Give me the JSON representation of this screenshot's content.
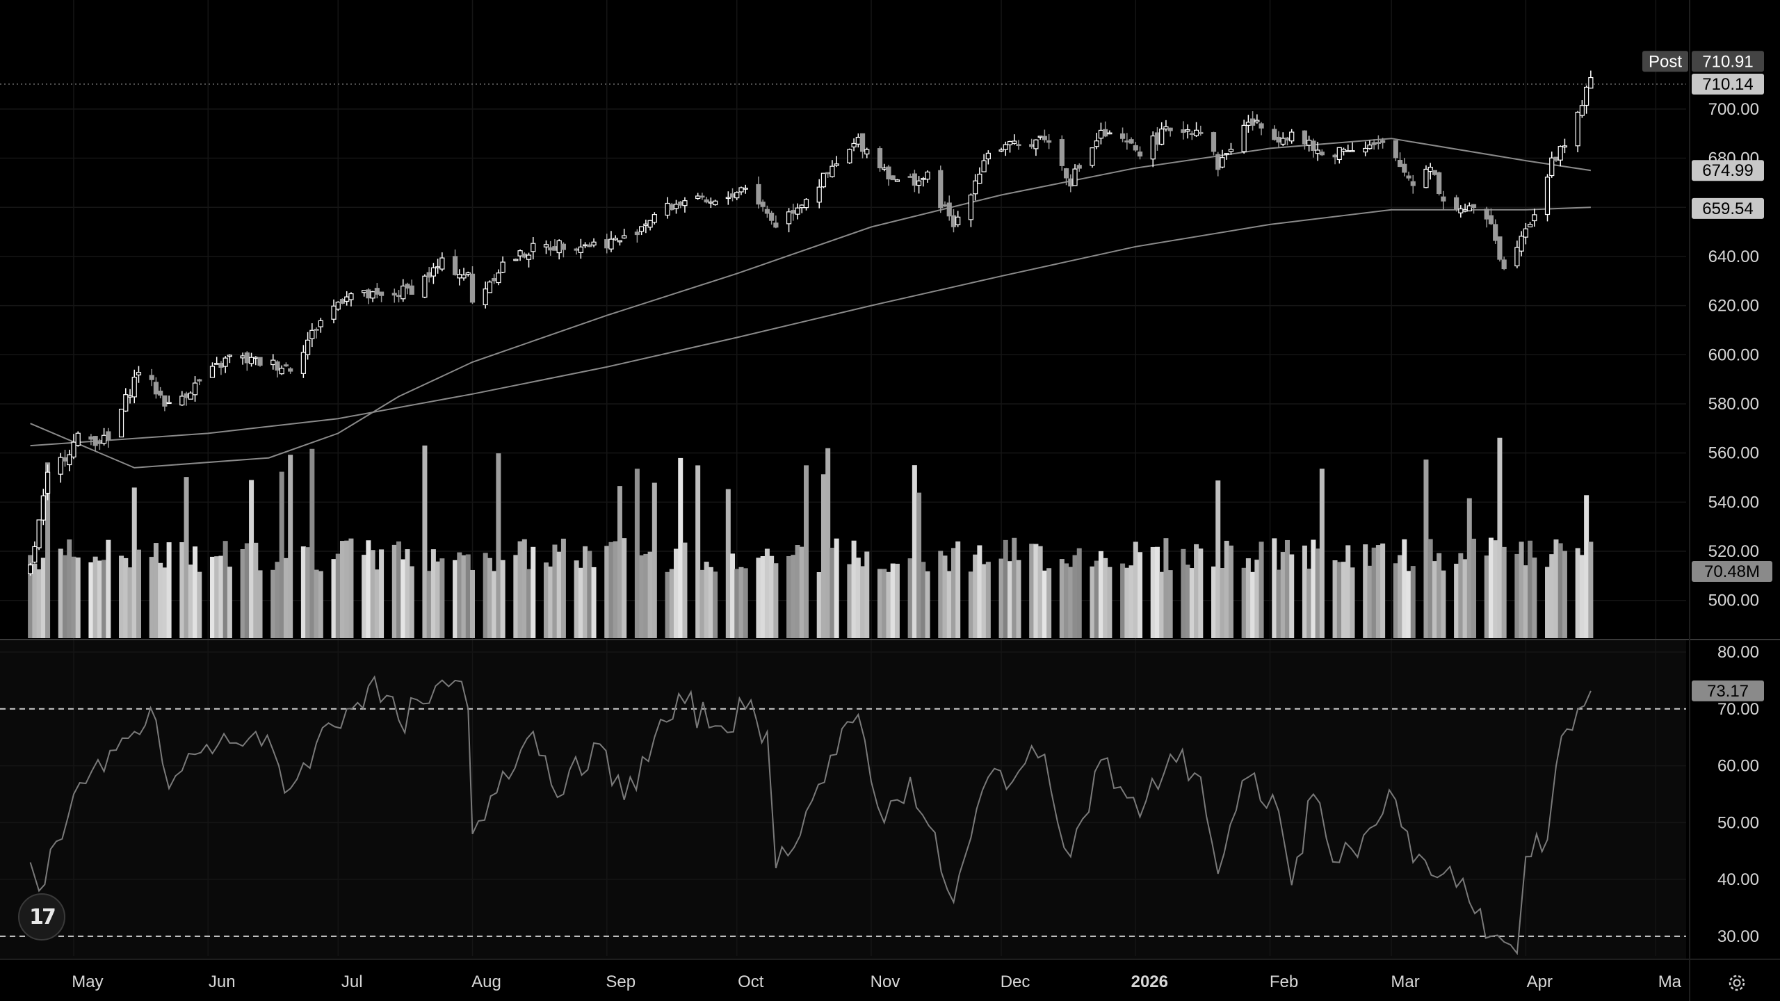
{
  "chart_data": [
    {
      "type": "candlestick",
      "title": "",
      "colors": {
        "up": "#ffffff",
        "down": "#9a9a9a",
        "ma50": "#8a8a8a",
        "ma200": "#8a8a8a",
        "volume": "#9a9a9a"
      },
      "x_tick_labels": [
        {
          "label": "May",
          "date": "2025-05-01"
        },
        {
          "label": "Jun",
          "date": "2025-06-01"
        },
        {
          "label": "Jul",
          "date": "2025-07-01"
        },
        {
          "label": "Aug",
          "date": "2025-08-01"
        },
        {
          "label": "Sep",
          "date": "2025-09-01"
        },
        {
          "label": "Oct",
          "date": "2025-10-01"
        },
        {
          "label": "Nov",
          "date": "2025-11-01"
        },
        {
          "label": "Dec",
          "date": "2025-12-01"
        },
        {
          "label": "2026",
          "date": "2026-01-01",
          "bold": true
        },
        {
          "label": "Feb",
          "date": "2026-02-01"
        },
        {
          "label": "Mar",
          "date": "2026-03-01"
        },
        {
          "label": "Apr",
          "date": "2026-04-01"
        },
        {
          "label": "Ma",
          "date": "2026-05-01"
        }
      ],
      "y_ticks": [
        "500.00",
        "520.00",
        "540.00",
        "560.00",
        "580.00",
        "600.00",
        "620.00",
        "640.00",
        "660.00",
        "680.00",
        "700.00"
      ],
      "ylim": [
        492,
        724
      ],
      "price_labels": [
        {
          "value": "710.91",
          "tag": "Post"
        },
        {
          "value": "710.14"
        },
        {
          "value": "674.99"
        },
        {
          "value": "659.54"
        }
      ],
      "volume_label": "70.48M",
      "close_path": [
        {
          "date": "2025-04-21",
          "close": 513
        },
        {
          "date": "2025-04-25",
          "close": 550
        },
        {
          "date": "2025-05-02",
          "close": 566
        },
        {
          "date": "2025-05-09",
          "close": 565
        },
        {
          "date": "2025-05-16",
          "close": 594
        },
        {
          "date": "2025-05-23",
          "close": 579
        },
        {
          "date": "2025-05-30",
          "close": 589
        },
        {
          "date": "2025-06-06",
          "close": 599
        },
        {
          "date": "2025-06-13",
          "close": 597
        },
        {
          "date": "2025-06-20",
          "close": 595
        },
        {
          "date": "2025-06-27",
          "close": 614
        },
        {
          "date": "2025-07-03",
          "close": 625
        },
        {
          "date": "2025-07-11",
          "close": 623
        },
        {
          "date": "2025-07-18",
          "close": 627
        },
        {
          "date": "2025-07-25",
          "close": 637
        },
        {
          "date": "2025-07-31",
          "close": 632
        },
        {
          "date": "2025-08-01",
          "close": 621
        },
        {
          "date": "2025-08-08",
          "close": 637
        },
        {
          "date": "2025-08-15",
          "close": 643
        },
        {
          "date": "2025-08-22",
          "close": 645
        },
        {
          "date": "2025-08-29",
          "close": 645
        },
        {
          "date": "2025-09-05",
          "close": 647
        },
        {
          "date": "2025-09-12",
          "close": 657
        },
        {
          "date": "2025-09-19",
          "close": 663
        },
        {
          "date": "2025-09-26",
          "close": 661
        },
        {
          "date": "2025-10-03",
          "close": 669
        },
        {
          "date": "2025-10-10",
          "close": 653
        },
        {
          "date": "2025-10-17",
          "close": 664
        },
        {
          "date": "2025-10-24",
          "close": 677
        },
        {
          "date": "2025-10-29",
          "close": 687
        },
        {
          "date": "2025-11-04",
          "close": 676
        },
        {
          "date": "2025-11-07",
          "close": 670
        },
        {
          "date": "2025-11-14",
          "close": 672
        },
        {
          "date": "2025-11-20",
          "close": 652
        },
        {
          "date": "2025-11-28",
          "close": 683
        },
        {
          "date": "2025-12-05",
          "close": 685
        },
        {
          "date": "2025-12-11",
          "close": 689
        },
        {
          "date": "2025-12-17",
          "close": 671
        },
        {
          "date": "2025-12-24",
          "close": 690
        },
        {
          "date": "2026-01-02",
          "close": 683
        },
        {
          "date": "2026-01-09",
          "close": 692
        },
        {
          "date": "2026-01-16",
          "close": 692
        },
        {
          "date": "2026-01-20",
          "close": 677
        },
        {
          "date": "2026-01-27",
          "close": 695
        },
        {
          "date": "2026-02-03",
          "close": 689
        },
        {
          "date": "2026-02-06",
          "close": 690
        },
        {
          "date": "2026-02-13",
          "close": 681
        },
        {
          "date": "2026-02-20",
          "close": 685
        },
        {
          "date": "2026-02-27",
          "close": 685
        },
        {
          "date": "2026-03-06",
          "close": 670
        },
        {
          "date": "2026-03-10",
          "close": 678
        },
        {
          "date": "2026-03-13",
          "close": 662
        },
        {
          "date": "2026-03-20",
          "close": 658
        },
        {
          "date": "2026-03-24",
          "close": 655
        },
        {
          "date": "2026-03-27",
          "close": 634
        },
        {
          "date": "2026-03-31",
          "close": 650
        },
        {
          "date": "2026-04-03",
          "close": 658
        },
        {
          "date": "2026-04-07",
          "close": 678
        },
        {
          "date": "2026-04-10",
          "close": 686
        },
        {
          "date": "2026-04-14",
          "close": 703
        },
        {
          "date": "2026-04-16",
          "close": 711
        }
      ],
      "ma50": [
        {
          "date": "2025-04-21",
          "value": 572
        },
        {
          "date": "2025-05-15",
          "value": 554
        },
        {
          "date": "2025-06-15",
          "value": 558
        },
        {
          "date": "2025-07-01",
          "value": 568
        },
        {
          "date": "2025-07-15",
          "value": 583
        },
        {
          "date": "2025-08-01",
          "value": 597
        },
        {
          "date": "2025-09-01",
          "value": 616
        },
        {
          "date": "2025-10-01",
          "value": 633
        },
        {
          "date": "2025-11-01",
          "value": 652
        },
        {
          "date": "2025-12-01",
          "value": 665
        },
        {
          "date": "2026-01-01",
          "value": 676
        },
        {
          "date": "2026-02-01",
          "value": 684
        },
        {
          "date": "2026-03-01",
          "value": 688
        },
        {
          "date": "2026-04-01",
          "value": 679
        },
        {
          "date": "2026-04-16",
          "value": 675
        }
      ],
      "ma200": [
        {
          "date": "2025-04-21",
          "value": 563
        },
        {
          "date": "2025-06-01",
          "value": 568
        },
        {
          "date": "2025-07-01",
          "value": 574
        },
        {
          "date": "2025-08-01",
          "value": 584
        },
        {
          "date": "2025-09-01",
          "value": 595
        },
        {
          "date": "2025-10-01",
          "value": 607
        },
        {
          "date": "2025-11-01",
          "value": 620
        },
        {
          "date": "2025-12-01",
          "value": 632
        },
        {
          "date": "2026-01-01",
          "value": 644
        },
        {
          "date": "2026-02-01",
          "value": 653
        },
        {
          "date": "2026-03-01",
          "value": 659
        },
        {
          "date": "2026-04-01",
          "value": 659
        },
        {
          "date": "2026-04-16",
          "value": 660
        }
      ]
    },
    {
      "type": "line",
      "title": "",
      "y_ticks": [
        "30.00",
        "40.00",
        "50.00",
        "60.00",
        "70.00",
        "80.00"
      ],
      "ylim": [
        24,
        80
      ],
      "reference_levels": [
        70,
        30
      ],
      "current_label": "73.17",
      "line_color": "#7a7a7a",
      "series": [
        {
          "date": "2025-04-21",
          "value": 43
        },
        {
          "date": "2025-04-23",
          "value": 38
        },
        {
          "date": "2025-05-01",
          "value": 55
        },
        {
          "date": "2025-05-08",
          "value": 59
        },
        {
          "date": "2025-05-15",
          "value": 66
        },
        {
          "date": "2025-05-20",
          "value": 68
        },
        {
          "date": "2025-05-23",
          "value": 56
        },
        {
          "date": "2025-05-29",
          "value": 62
        },
        {
          "date": "2025-06-06",
          "value": 64
        },
        {
          "date": "2025-06-12",
          "value": 66
        },
        {
          "date": "2025-06-20",
          "value": 56
        },
        {
          "date": "2025-06-26",
          "value": 64
        },
        {
          "date": "2025-07-03",
          "value": 70
        },
        {
          "date": "2025-07-08",
          "value": 74
        },
        {
          "date": "2025-07-15",
          "value": 68
        },
        {
          "date": "2025-07-22",
          "value": 71
        },
        {
          "date": "2025-07-28",
          "value": 75
        },
        {
          "date": "2025-07-31",
          "value": 70
        },
        {
          "date": "2025-08-01",
          "value": 48
        },
        {
          "date": "2025-08-08",
          "value": 59
        },
        {
          "date": "2025-08-15",
          "value": 66
        },
        {
          "date": "2025-08-22",
          "value": 55
        },
        {
          "date": "2025-08-29",
          "value": 64
        },
        {
          "date": "2025-09-05",
          "value": 54
        },
        {
          "date": "2025-09-12",
          "value": 65
        },
        {
          "date": "2025-09-19",
          "value": 71
        },
        {
          "date": "2025-09-26",
          "value": 67
        },
        {
          "date": "2025-10-03",
          "value": 70
        },
        {
          "date": "2025-10-08",
          "value": 66
        },
        {
          "date": "2025-10-10",
          "value": 42
        },
        {
          "date": "2025-10-17",
          "value": 52
        },
        {
          "date": "2025-10-24",
          "value": 62
        },
        {
          "date": "2025-10-29",
          "value": 69
        },
        {
          "date": "2025-11-04",
          "value": 50
        },
        {
          "date": "2025-11-10",
          "value": 58
        },
        {
          "date": "2025-11-20",
          "value": 36
        },
        {
          "date": "2025-11-28",
          "value": 58
        },
        {
          "date": "2025-12-05",
          "value": 59
        },
        {
          "date": "2025-12-11",
          "value": 62
        },
        {
          "date": "2025-12-17",
          "value": 44
        },
        {
          "date": "2025-12-24",
          "value": 61
        },
        {
          "date": "2026-01-02",
          "value": 51
        },
        {
          "date": "2026-01-09",
          "value": 62
        },
        {
          "date": "2026-01-16",
          "value": 58
        },
        {
          "date": "2026-01-20",
          "value": 41
        },
        {
          "date": "2026-01-27",
          "value": 58
        },
        {
          "date": "2026-02-03",
          "value": 52
        },
        {
          "date": "2026-02-06",
          "value": 39
        },
        {
          "date": "2026-02-11",
          "value": 55
        },
        {
          "date": "2026-02-17",
          "value": 43
        },
        {
          "date": "2026-02-24",
          "value": 49
        },
        {
          "date": "2026-03-02",
          "value": 54
        },
        {
          "date": "2026-03-06",
          "value": 43
        },
        {
          "date": "2026-03-13",
          "value": 41
        },
        {
          "date": "2026-03-19",
          "value": 36
        },
        {
          "date": "2026-03-24",
          "value": 30
        },
        {
          "date": "2026-03-27",
          "value": 29
        },
        {
          "date": "2026-03-30",
          "value": 27
        },
        {
          "date": "2026-04-01",
          "value": 44
        },
        {
          "date": "2026-04-06",
          "value": 47
        },
        {
          "date": "2026-04-08",
          "value": 60
        },
        {
          "date": "2026-04-13",
          "value": 70
        },
        {
          "date": "2026-04-16",
          "value": 73.17
        }
      ]
    }
  ],
  "logo_text": "17",
  "icons": {
    "logo": "tradingview-logo-icon",
    "settings": "gear-icon"
  }
}
